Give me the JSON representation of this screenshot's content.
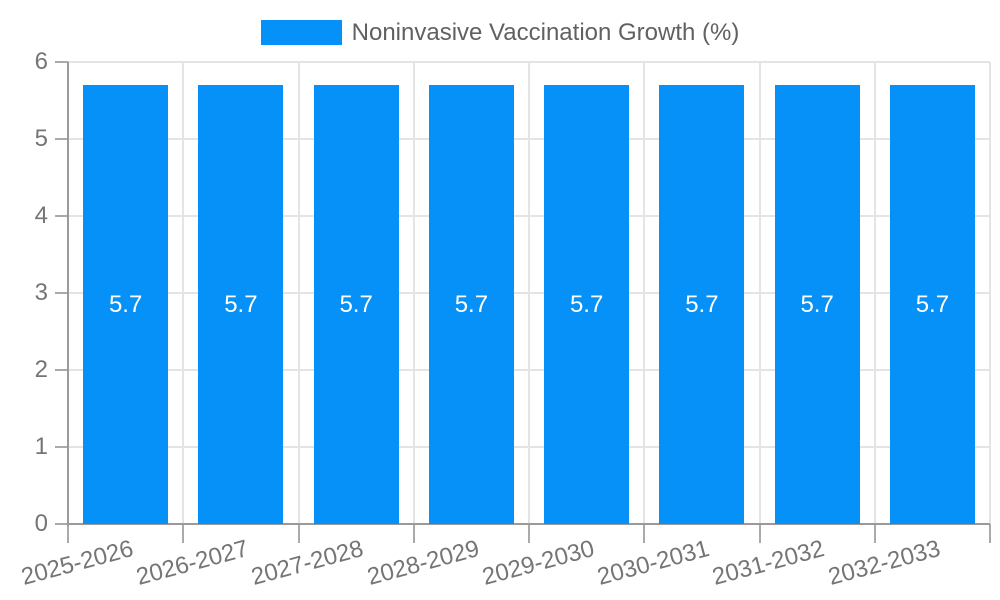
{
  "legend": {
    "label": "Noninvasive Vaccination Growth (%)"
  },
  "chart_data": {
    "type": "bar",
    "title": "Noninvasive Vaccination Growth (%)",
    "categories": [
      "2025-2026",
      "2026-2027",
      "2027-2028",
      "2028-2029",
      "2029-2030",
      "2030-2031",
      "2031-2032",
      "2032-2033"
    ],
    "series": [
      {
        "name": "Noninvasive Vaccination Growth (%)",
        "values": [
          5.7,
          5.7,
          5.7,
          5.7,
          5.7,
          5.7,
          5.7,
          5.7
        ]
      }
    ],
    "value_labels": [
      "5.7",
      "5.7",
      "5.7",
      "5.7",
      "5.7",
      "5.7",
      "5.7",
      "5.7"
    ],
    "xlabel": "",
    "ylabel": "",
    "ylim": [
      0,
      6
    ],
    "yticks": [
      0,
      1,
      2,
      3,
      4,
      5,
      6
    ],
    "grid": true,
    "legend_position": "top-center",
    "x_label_rotation_deg": -15,
    "colors": {
      "bar": "#0591f8",
      "value_label": "#ffffff",
      "axis_line": "#9a9a9a",
      "gridline": "#e4e4e4",
      "tick": "#aaaaaa",
      "tick_label": "#757575",
      "legend_text": "#616161",
      "background": "#ffffff"
    }
  }
}
